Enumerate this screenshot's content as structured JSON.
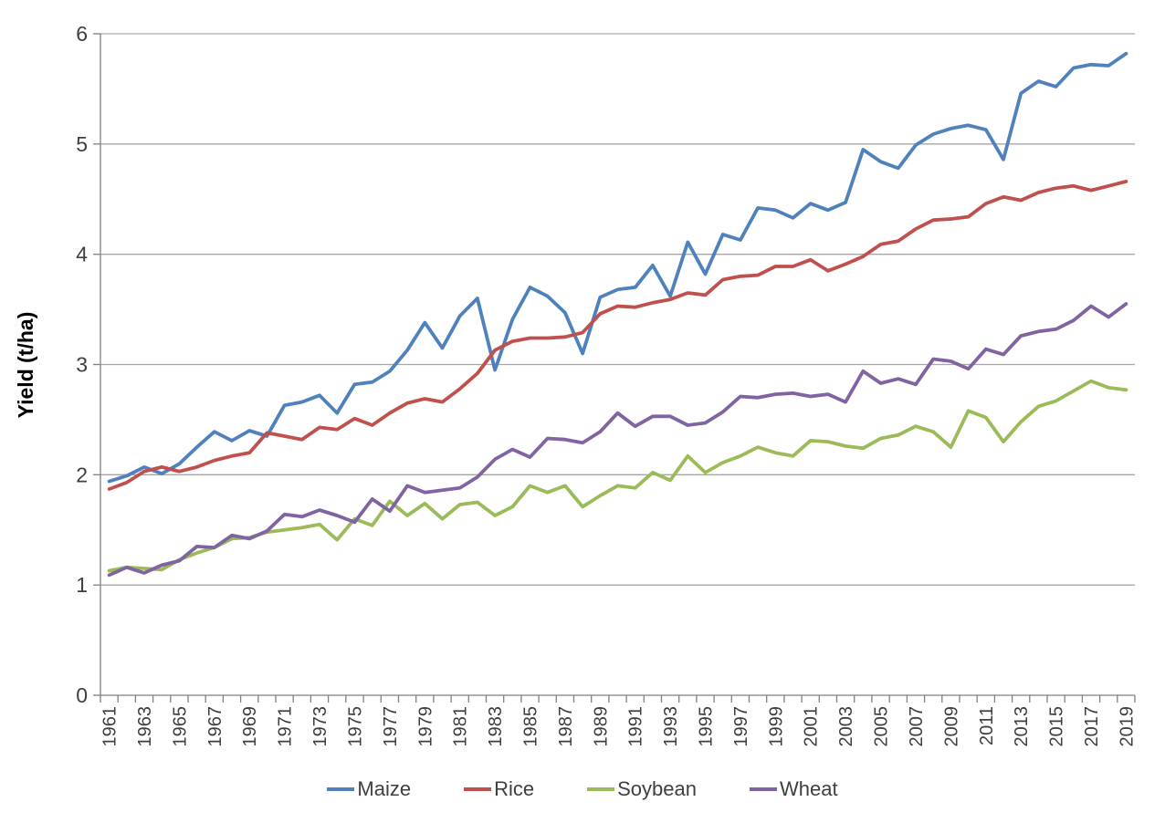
{
  "colors": {
    "background": "#ffffff",
    "gridline": "#a6a6a6",
    "axis": "#808080",
    "tick": "#808080",
    "text": "#3f3f3f"
  },
  "chart_data": {
    "type": "line",
    "title": "",
    "xlabel": "",
    "ylabel": "Yield (t/ha)",
    "ylim": [
      0,
      6
    ],
    "y_ticks": [
      0,
      1,
      2,
      3,
      4,
      5,
      6
    ],
    "grid": "horizontal",
    "legend_position": "bottom",
    "x_tick_labels": [
      "1961",
      "1963",
      "1965",
      "1967",
      "1969",
      "1971",
      "1973",
      "1975",
      "1977",
      "1979",
      "1981",
      "1983",
      "1985",
      "1987",
      "1989",
      "1991",
      "1993",
      "1995",
      "1997",
      "1999",
      "2001",
      "2003",
      "2005",
      "2007",
      "2009",
      "2011",
      "2013",
      "2015",
      "2017",
      "2019"
    ],
    "x": [
      1961,
      1962,
      1963,
      1964,
      1965,
      1966,
      1967,
      1968,
      1969,
      1970,
      1971,
      1972,
      1973,
      1974,
      1975,
      1976,
      1977,
      1978,
      1979,
      1980,
      1981,
      1982,
      1983,
      1984,
      1985,
      1986,
      1987,
      1988,
      1989,
      1990,
      1991,
      1992,
      1993,
      1994,
      1995,
      1996,
      1997,
      1998,
      1999,
      2000,
      2001,
      2002,
      2003,
      2004,
      2005,
      2006,
      2007,
      2008,
      2009,
      2010,
      2011,
      2012,
      2013,
      2014,
      2015,
      2016,
      2017,
      2018,
      2019
    ],
    "series": [
      {
        "name": "Maize",
        "color": "#4F81BD",
        "values": [
          1.94,
          1.99,
          2.07,
          2.01,
          2.1,
          2.25,
          2.39,
          2.31,
          2.4,
          2.35,
          2.63,
          2.66,
          2.72,
          2.56,
          2.82,
          2.84,
          2.94,
          3.13,
          3.38,
          3.15,
          3.44,
          3.6,
          2.95,
          3.41,
          3.7,
          3.62,
          3.47,
          3.1,
          3.61,
          3.68,
          3.7,
          3.9,
          3.62,
          4.11,
          3.82,
          4.18,
          4.13,
          4.42,
          4.4,
          4.33,
          4.46,
          4.4,
          4.47,
          4.95,
          4.84,
          4.78,
          4.99,
          5.09,
          5.14,
          5.17,
          5.13,
          4.86,
          5.46,
          5.57,
          5.52,
          5.69,
          5.72,
          5.71,
          5.82
        ]
      },
      {
        "name": "Rice",
        "color": "#C0504D",
        "values": [
          1.87,
          1.93,
          2.03,
          2.07,
          2.03,
          2.07,
          2.13,
          2.17,
          2.2,
          2.38,
          2.35,
          2.32,
          2.43,
          2.41,
          2.51,
          2.45,
          2.56,
          2.65,
          2.69,
          2.66,
          2.78,
          2.92,
          3.13,
          3.21,
          3.24,
          3.24,
          3.25,
          3.29,
          3.46,
          3.53,
          3.52,
          3.56,
          3.59,
          3.65,
          3.63,
          3.77,
          3.8,
          3.81,
          3.89,
          3.89,
          3.95,
          3.85,
          3.91,
          3.98,
          4.09,
          4.12,
          4.23,
          4.31,
          4.32,
          4.34,
          4.46,
          4.52,
          4.49,
          4.56,
          4.6,
          4.62,
          4.58,
          4.62,
          4.66
        ]
      },
      {
        "name": "Soybean",
        "color": "#9BBB59",
        "values": [
          1.13,
          1.16,
          1.15,
          1.14,
          1.23,
          1.29,
          1.34,
          1.42,
          1.43,
          1.48,
          1.5,
          1.52,
          1.55,
          1.41,
          1.6,
          1.54,
          1.76,
          1.63,
          1.74,
          1.6,
          1.73,
          1.75,
          1.63,
          1.71,
          1.9,
          1.84,
          1.9,
          1.71,
          1.81,
          1.9,
          1.88,
          2.02,
          1.95,
          2.17,
          2.02,
          2.11,
          2.17,
          2.25,
          2.2,
          2.17,
          2.31,
          2.3,
          2.26,
          2.24,
          2.33,
          2.36,
          2.44,
          2.39,
          2.25,
          2.58,
          2.52,
          2.3,
          2.48,
          2.62,
          2.67,
          2.76,
          2.85,
          2.79,
          2.77
        ]
      },
      {
        "name": "Wheat",
        "color": "#8064A2",
        "values": [
          1.09,
          1.16,
          1.11,
          1.18,
          1.22,
          1.35,
          1.34,
          1.45,
          1.42,
          1.49,
          1.64,
          1.62,
          1.68,
          1.63,
          1.57,
          1.78,
          1.67,
          1.9,
          1.84,
          1.86,
          1.88,
          1.98,
          2.14,
          2.23,
          2.16,
          2.33,
          2.32,
          2.29,
          2.39,
          2.56,
          2.44,
          2.53,
          2.53,
          2.45,
          2.47,
          2.57,
          2.71,
          2.7,
          2.73,
          2.74,
          2.71,
          2.73,
          2.66,
          2.94,
          2.83,
          2.87,
          2.82,
          3.05,
          3.03,
          2.96,
          3.14,
          3.09,
          3.26,
          3.3,
          3.32,
          3.4,
          3.53,
          3.43,
          3.55
        ]
      }
    ]
  }
}
